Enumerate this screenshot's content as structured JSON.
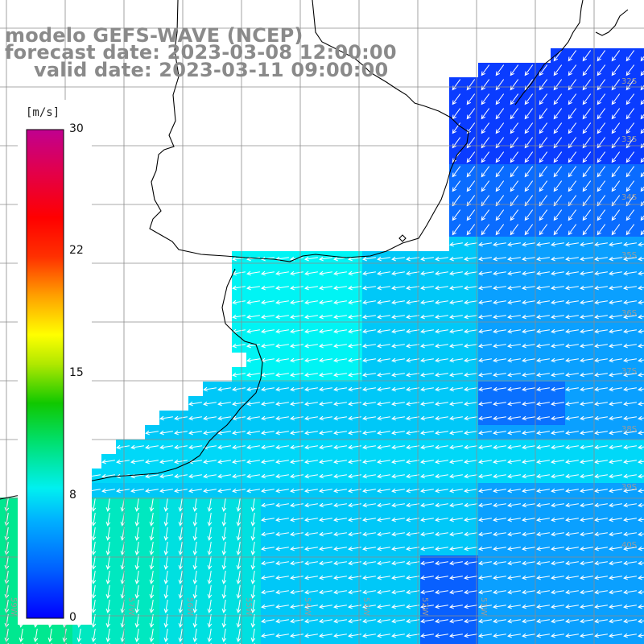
{
  "titles": {
    "line1": "modelo GEFS-WAVE (NCEP)",
    "line2": "forecast date: 2023-03-08 12:00:00",
    "line3": "valid date: 2023-03-11 09:00:00"
  },
  "colorbar": {
    "unit": "[m/s]",
    "ticks": [
      "30",
      "22",
      "15",
      "8",
      "0"
    ],
    "tick_values": [
      30,
      22,
      15,
      8,
      0
    ],
    "range": [
      0,
      30
    ],
    "colors": [
      "#0000ff",
      "#0090ff",
      "#00f0f0",
      "#00e070",
      "#00c800",
      "#90e000",
      "#ffff00",
      "#ffa000",
      "#ff3000",
      "#ff0000",
      "#e00060",
      "#c00090"
    ]
  },
  "map": {
    "land_color": "#ffffff",
    "coastline_color": "#000000",
    "grid_color": "#8c8c8c",
    "arrow_color": "#ffffff",
    "lat_labels": [
      "32S",
      "33S",
      "34S",
      "35S",
      "36S",
      "37S",
      "38S",
      "39S",
      "40S"
    ],
    "lon_labels": [
      "59W",
      "58W",
      "57W",
      "56W",
      "55W",
      "54W",
      "53W",
      "52W",
      "51W"
    ],
    "label_color": "#9a9a9a"
  }
}
